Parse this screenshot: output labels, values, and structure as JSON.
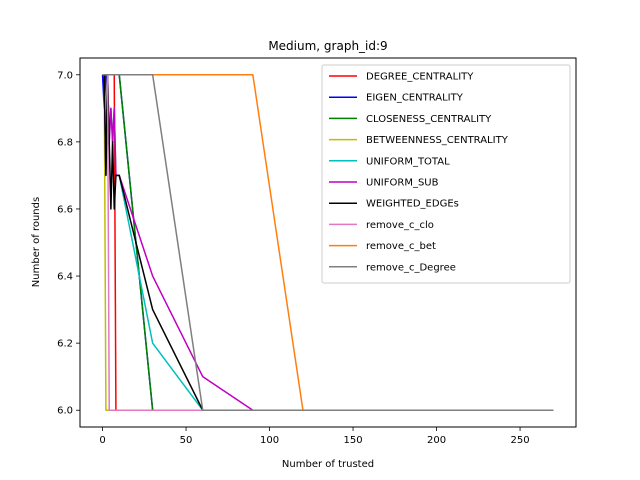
{
  "chart_data": {
    "type": "line",
    "title": "Medium, graph_id:9",
    "xlabel": "Number of trusted",
    "ylabel": "Number of rounds",
    "xlim": [
      -13.5,
      283.5
    ],
    "ylim": [
      5.95,
      7.05
    ],
    "xticks": [
      0,
      50,
      100,
      150,
      200,
      250
    ],
    "yticks": [
      6.0,
      6.2,
      6.4,
      6.6,
      6.8,
      7.0
    ],
    "ytick_labels": [
      "6.0",
      "6.2",
      "6.4",
      "6.6",
      "6.8",
      "7.0"
    ],
    "grid": false,
    "legend_position": "upper right",
    "series": [
      {
        "name": "DEGREE_CENTRALITY",
        "color": "#ff0000",
        "x": [
          0,
          1,
          2,
          3,
          4,
          5,
          6,
          7,
          8,
          9,
          10,
          30,
          60,
          90,
          120,
          150,
          180,
          210,
          240,
          270
        ],
        "y": [
          7.0,
          7.0,
          7.0,
          7.0,
          7.0,
          7.0,
          7.0,
          7.0,
          6.0,
          6.0,
          6.0,
          6.0,
          6.0,
          6.0,
          6.0,
          6.0,
          6.0,
          6.0,
          6.0,
          6.0
        ]
      },
      {
        "name": "EIGEN_CENTRALITY",
        "color": "#0000ff",
        "x": [
          0,
          1,
          2,
          3,
          4,
          5,
          6,
          7,
          8,
          9,
          10,
          30,
          60,
          90,
          120,
          150,
          180,
          210,
          240,
          270
        ],
        "y": [
          7.0,
          6.9,
          7.0,
          7.0,
          7.0,
          7.0,
          7.0,
          7.0,
          7.0,
          7.0,
          7.0,
          6.0,
          6.0,
          6.0,
          6.0,
          6.0,
          6.0,
          6.0,
          6.0,
          6.0
        ]
      },
      {
        "name": "CLOSENESS_CENTRALITY",
        "color": "#008000",
        "x": [
          0,
          1,
          2,
          3,
          4,
          5,
          6,
          7,
          8,
          9,
          10,
          30,
          60,
          90,
          120,
          150,
          180,
          210,
          240,
          270
        ],
        "y": [
          7.0,
          7.0,
          7.0,
          7.0,
          7.0,
          7.0,
          7.0,
          7.0,
          7.0,
          7.0,
          7.0,
          6.0,
          6.0,
          6.0,
          6.0,
          6.0,
          6.0,
          6.0,
          6.0,
          6.0
        ]
      },
      {
        "name": "BETWEENNESS_CENTRALITY",
        "color": "#bfbf00",
        "x": [
          0,
          1,
          2,
          3,
          4,
          5,
          6,
          7,
          8,
          9,
          10,
          30,
          60,
          90,
          120,
          150,
          180,
          210,
          240,
          270
        ],
        "y": [
          7.0,
          7.0,
          6.0,
          6.0,
          6.0,
          6.0,
          6.0,
          6.0,
          6.0,
          6.0,
          6.0,
          6.0,
          6.0,
          6.0,
          6.0,
          6.0,
          6.0,
          6.0,
          6.0,
          6.0
        ]
      },
      {
        "name": "UNIFORM_TOTAL",
        "color": "#00bfbf",
        "x": [
          0,
          1,
          2,
          3,
          4,
          5,
          6,
          7,
          8,
          9,
          10,
          30,
          60,
          90,
          120,
          150,
          180,
          210,
          240,
          270
        ],
        "y": [
          7.0,
          7.0,
          6.7,
          7.0,
          6.8,
          6.9,
          6.8,
          6.9,
          6.7,
          6.7,
          6.7,
          6.2,
          6.0,
          6.0,
          6.0,
          6.0,
          6.0,
          6.0,
          6.0,
          6.0
        ]
      },
      {
        "name": "UNIFORM_SUB",
        "color": "#bf00bf",
        "x": [
          0,
          1,
          2,
          3,
          4,
          5,
          6,
          7,
          8,
          9,
          10,
          30,
          60,
          90,
          120,
          150,
          180,
          210,
          240,
          270
        ],
        "y": [
          7.0,
          7.0,
          6.7,
          7.0,
          6.8,
          6.9,
          6.8,
          6.9,
          6.7,
          6.7,
          6.7,
          6.4,
          6.1,
          6.0,
          6.0,
          6.0,
          6.0,
          6.0,
          6.0,
          6.0
        ]
      },
      {
        "name": "WEIGHTED_EDGEs",
        "color": "#000000",
        "x": [
          0,
          1,
          2,
          3,
          4,
          5,
          6,
          7,
          8,
          9,
          10,
          30,
          60,
          90,
          120,
          150,
          180,
          210,
          240,
          270
        ],
        "y": [
          7.0,
          7.0,
          6.7,
          7.0,
          6.8,
          6.6,
          6.8,
          6.6,
          6.7,
          6.7,
          6.7,
          6.3,
          6.0,
          6.0,
          6.0,
          6.0,
          6.0,
          6.0,
          6.0,
          6.0
        ]
      },
      {
        "name": "remove_c_clo",
        "color": "#e377c2",
        "x": [
          0,
          1,
          2,
          3,
          4,
          5,
          6,
          7,
          8,
          9,
          10,
          30,
          60,
          90,
          120,
          150,
          180,
          210,
          240,
          270
        ],
        "y": [
          7.0,
          7.0,
          7.0,
          7.0,
          6.0,
          6.0,
          6.0,
          6.0,
          6.0,
          6.0,
          6.0,
          6.0,
          6.0,
          6.0,
          6.0,
          6.0,
          6.0,
          6.0,
          6.0,
          6.0
        ]
      },
      {
        "name": "remove_c_bet",
        "color": "#ff7f0e",
        "x": [
          0,
          1,
          2,
          3,
          4,
          5,
          6,
          7,
          8,
          9,
          10,
          30,
          60,
          90,
          120,
          150,
          180,
          210,
          240,
          270
        ],
        "y": [
          7.0,
          7.0,
          7.0,
          7.0,
          7.0,
          7.0,
          7.0,
          7.0,
          7.0,
          7.0,
          7.0,
          7.0,
          7.0,
          7.0,
          6.0,
          6.0,
          6.0,
          6.0,
          6.0,
          6.0
        ]
      },
      {
        "name": "remove_c_Degree",
        "color": "#7f7f7f",
        "x": [
          0,
          1,
          2,
          3,
          4,
          5,
          6,
          7,
          8,
          9,
          10,
          30,
          60,
          90,
          120,
          150,
          180,
          210,
          240,
          270
        ],
        "y": [
          7.0,
          7.0,
          7.0,
          7.0,
          7.0,
          7.0,
          7.0,
          7.0,
          7.0,
          7.0,
          7.0,
          7.0,
          6.0,
          6.0,
          6.0,
          6.0,
          6.0,
          6.0,
          6.0,
          6.0
        ]
      }
    ]
  }
}
